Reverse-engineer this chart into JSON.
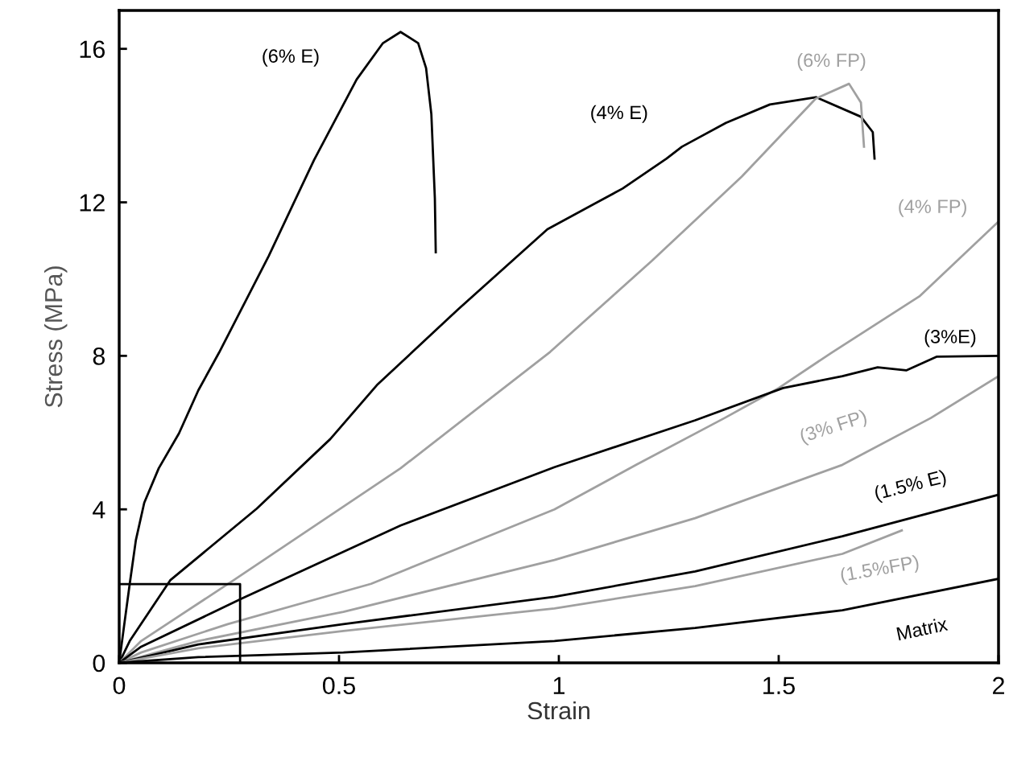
{
  "chart_data": {
    "type": "line",
    "xlabel": "Strain",
    "ylabel": "Stress (MPa)",
    "xlim": [
      0,
      2
    ],
    "ylim": [
      0,
      17
    ],
    "xticks": [
      0,
      0.5,
      1,
      1.5,
      2
    ],
    "yticks": [
      0,
      4,
      8,
      12,
      16
    ],
    "grid": false,
    "legend": false,
    "marker": "none",
    "line_style": "solid",
    "series": [
      {
        "name": "(6% E)",
        "color": "#000000",
        "x": [
          0,
          0.011,
          0.024,
          0.038,
          0.057,
          0.09,
          0.136,
          0.18,
          0.227,
          0.34,
          0.443,
          0.54,
          0.6,
          0.64,
          0.68,
          0.698,
          0.71,
          0.718,
          0.72
        ],
        "values": [
          0,
          0.95,
          2.06,
          3.2,
          4.17,
          5.07,
          5.98,
          7.1,
          8.08,
          10.6,
          13.1,
          15.2,
          16.15,
          16.44,
          16.15,
          15.5,
          14.3,
          12.1,
          10.7
        ]
      },
      {
        "name": "(4% E)",
        "color": "#000000",
        "x": [
          0,
          0.024,
          0.116,
          0.313,
          0.48,
          0.588,
          0.665,
          0.77,
          0.974,
          1.145,
          1.245,
          1.28,
          1.38,
          1.48,
          1.585,
          1.687,
          1.714,
          1.718
        ],
        "values": [
          0,
          0.57,
          2.15,
          4.02,
          5.83,
          7.26,
          8.08,
          9.2,
          11.3,
          12.36,
          13.14,
          13.45,
          14.07,
          14.55,
          14.74,
          14.23,
          13.83,
          13.14
        ]
      },
      {
        "name": "(6% FP)",
        "color": "#a0a0a0",
        "x": [
          0,
          0.05,
          0.26,
          0.64,
          0.98,
          1.212,
          1.416,
          1.584,
          1.66,
          1.687,
          1.694
        ],
        "values": [
          0,
          0.57,
          2.15,
          5.07,
          8.1,
          10.48,
          12.67,
          14.7,
          15.09,
          14.6,
          13.45
        ]
      },
      {
        "name": "(4% FP)",
        "color": "#a0a0a0",
        "x": [
          0,
          0.05,
          0.247,
          0.573,
          0.99,
          1.176,
          1.377,
          1.5,
          1.62,
          1.82,
          2.0
        ],
        "values": [
          0,
          0.27,
          1.01,
          2.06,
          4.0,
          5.16,
          6.38,
          7.16,
          8.08,
          9.55,
          11.5
        ]
      },
      {
        "name": "(3%E)",
        "color": "#000000",
        "x": [
          0,
          0.05,
          0.28,
          0.64,
          0.99,
          1.31,
          1.51,
          1.645,
          1.725,
          1.79,
          1.86,
          2.0
        ],
        "values": [
          0,
          0.42,
          1.68,
          3.58,
          5.1,
          6.32,
          7.16,
          7.47,
          7.7,
          7.62,
          7.98,
          8.0
        ]
      },
      {
        "name": "(3% FP)",
        "color": "#a0a0a0",
        "x": [
          0,
          0.18,
          0.51,
          0.99,
          1.31,
          1.645,
          1.846,
          2.0
        ],
        "values": [
          0,
          0.57,
          1.33,
          2.68,
          3.77,
          5.16,
          6.38,
          7.47
        ]
      },
      {
        "name": "(1.5% E)",
        "color": "#000000",
        "x": [
          0,
          0.18,
          0.51,
          0.99,
          1.31,
          1.645,
          2.0
        ],
        "values": [
          0,
          0.48,
          1.01,
          1.72,
          2.38,
          3.3,
          4.38
        ]
      },
      {
        "name": "(1.5%FP)",
        "color": "#a0a0a0",
        "x": [
          0,
          0.18,
          0.51,
          0.99,
          1.31,
          1.645,
          1.78
        ],
        "values": [
          0,
          0.38,
          0.83,
          1.42,
          2.0,
          2.84,
          3.45
        ]
      },
      {
        "name": "Matrix",
        "color": "#000000",
        "x": [
          0,
          0.18,
          0.51,
          0.99,
          1.31,
          1.645,
          2.0
        ],
        "values": [
          0,
          0.15,
          0.27,
          0.57,
          0.91,
          1.37,
          2.19
        ]
      },
      {
        "color": "#000000",
        "x": [
          0,
          0.275,
          0.275
        ],
        "values": [
          2.05,
          2.05,
          0
        ]
      }
    ]
  }
}
